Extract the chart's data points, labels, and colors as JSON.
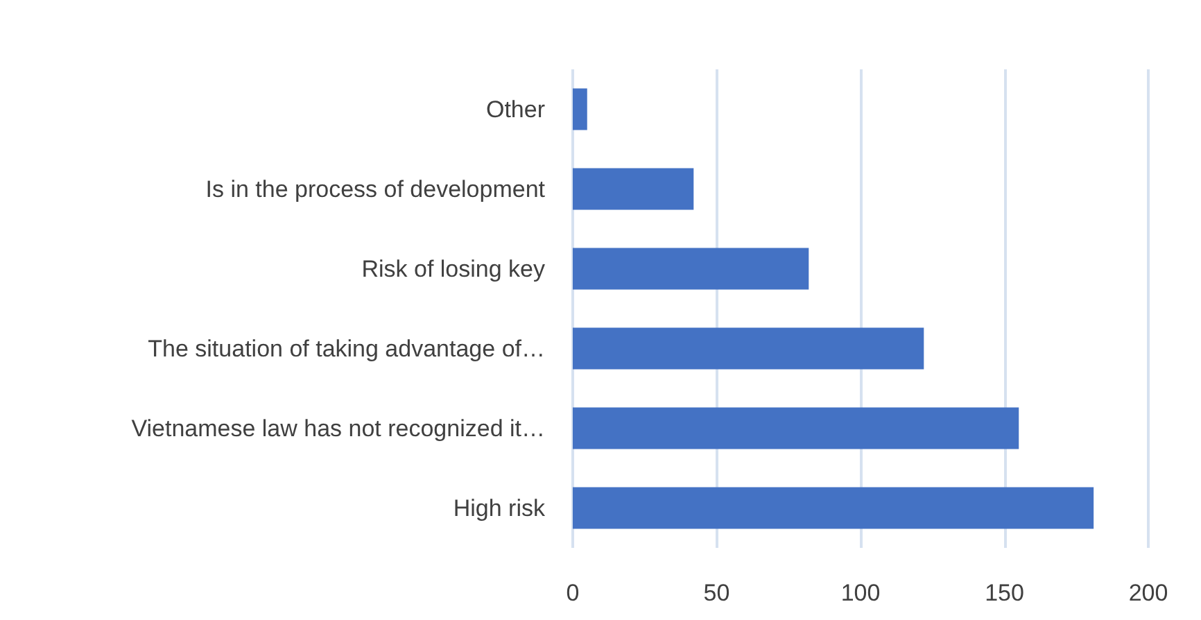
{
  "chart_data": {
    "type": "bar",
    "orientation": "horizontal",
    "categories": [
      "Other",
      "Is in the process of development",
      "Risk of losing key",
      "The situation of taking advantage of…",
      "Vietnamese law has not recognized it…",
      "High risk"
    ],
    "values": [
      5,
      42,
      82,
      122,
      155,
      181
    ],
    "color": "#4472c4",
    "xlim": [
      0,
      200
    ],
    "xticks": [
      0,
      50,
      100,
      150,
      200
    ],
    "grid": "x"
  }
}
